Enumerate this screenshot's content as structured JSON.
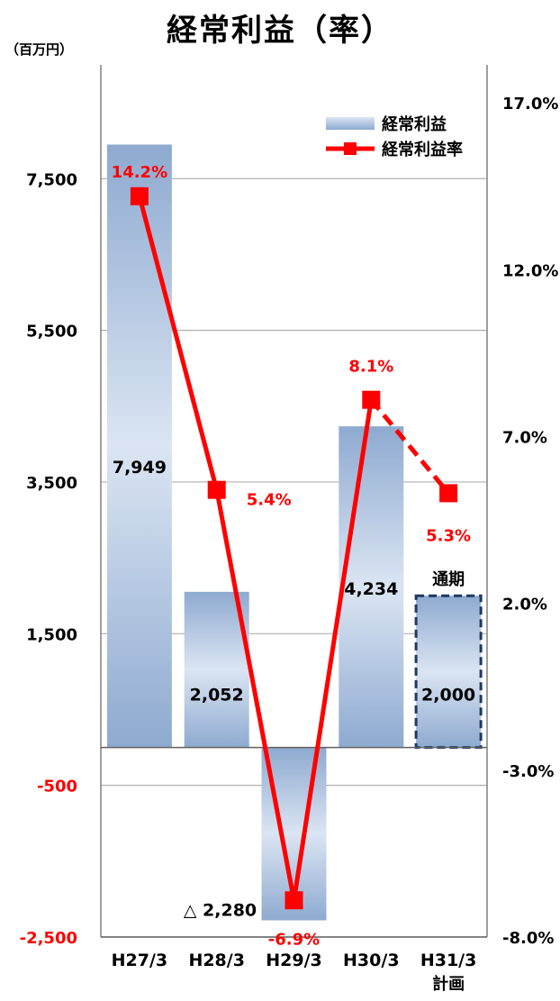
{
  "title": "経常利益（率）",
  "unit_label": "（百万円）",
  "chart_data": {
    "type": "bar+line",
    "categories": [
      "H27/3",
      "H28/3",
      "H29/3",
      "H30/3",
      "H31/3"
    ],
    "category_sublabels": [
      "",
      "",
      "",
      "",
      "計画"
    ],
    "bar_series": {
      "name": "経常利益",
      "values": [
        7949,
        2052,
        -2280,
        4234,
        2000
      ],
      "labels": [
        "7,949",
        "2,052",
        "△ 2,280",
        "4,234",
        "2,000"
      ],
      "planned_index": 4,
      "planned_tag": "通期",
      "color_dark": "#8eaad0",
      "color_light": "#dbe5f3"
    },
    "line_series": {
      "name": "経常利益率",
      "values": [
        14.2,
        5.4,
        -6.9,
        8.1,
        5.3
      ],
      "labels": [
        "14.2%",
        "5.4%",
        "-6.9%",
        "8.1%",
        "5.3%"
      ],
      "dashed_last_segment": true,
      "color": "#ff0000"
    },
    "y_left": {
      "ticks": [
        7500,
        5500,
        3500,
        1500,
        -500,
        -2500
      ],
      "tick_labels": [
        "7,500",
        "5,500",
        "3,500",
        "1,500",
        "-500",
        "-2,500"
      ],
      "negative_color": "#ff0000"
    },
    "y_right": {
      "ticks": [
        17.0,
        12.0,
        7.0,
        2.0,
        -3.0,
        -8.0
      ],
      "tick_labels": [
        "17.0%",
        "12.0%",
        "7.0%",
        "2.0%",
        "-3.0%",
        "-8.0%"
      ]
    },
    "grid": true,
    "legend_position": "top-right",
    "planned_border_color": "#1f3a5f"
  }
}
